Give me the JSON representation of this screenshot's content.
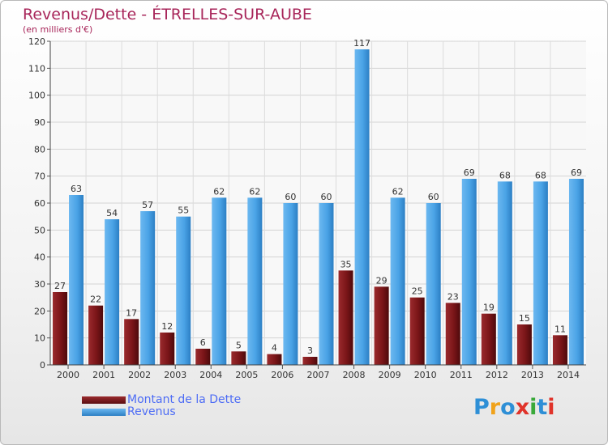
{
  "chart_data": {
    "type": "bar",
    "title": "Revenus/Dette - ÉTRELLES-SUR-AUBE",
    "subtitle": "(en milliers d'€)",
    "categories": [
      "2000",
      "2001",
      "2002",
      "2003",
      "2004",
      "2005",
      "2006",
      "2007",
      "2008",
      "2009",
      "2010",
      "2011",
      "2012",
      "2013",
      "2014"
    ],
    "series": [
      {
        "name": "Montant de la Dette",
        "values": [
          27,
          22,
          17,
          12,
          6,
          5,
          4,
          3,
          35,
          29,
          25,
          23,
          19,
          15,
          11
        ],
        "color": "#7a1518"
      },
      {
        "name": "Revenus",
        "values": [
          63,
          54,
          57,
          55,
          62,
          62,
          60,
          60,
          117,
          62,
          60,
          69,
          68,
          68,
          69
        ],
        "color": "#4aa3e6"
      }
    ],
    "yticks": [
      0,
      10,
      20,
      30,
      40,
      50,
      60,
      70,
      80,
      90,
      100,
      110,
      120
    ],
    "ylim": [
      0,
      120
    ],
    "grid": true,
    "legend_position": "bottom-left"
  },
  "logo": {
    "letters": [
      "P",
      "r",
      "o",
      "x",
      "i",
      "t",
      "i"
    ],
    "colors": [
      "#2e8fd6",
      "#f0a21a",
      "#2e8fd6",
      "#e0332a",
      "#3aa93a",
      "#2e8fd6",
      "#e0332a"
    ]
  }
}
